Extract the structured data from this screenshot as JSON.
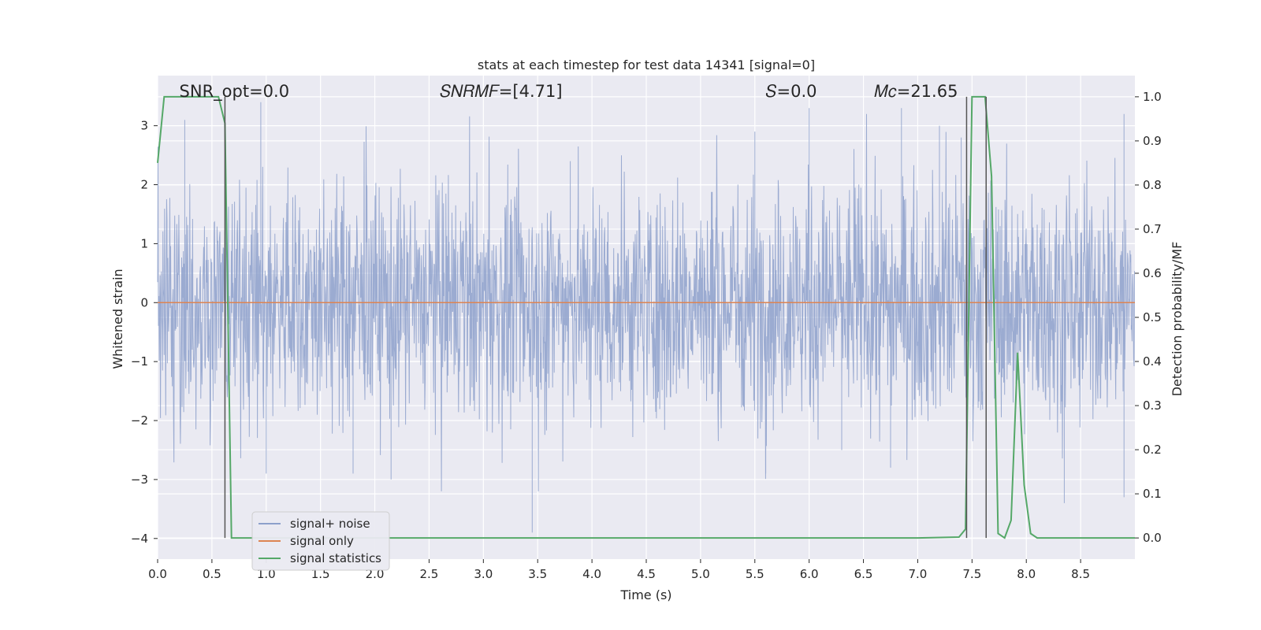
{
  "chart_data": {
    "type": "line",
    "title": "stats at each timestep for test data 14341 [signal=0]",
    "xlabel": "Time (s)",
    "ylabel": "Whitened strain",
    "y2label": "Detection probability/MF",
    "xlim": [
      0.0,
      9.0
    ],
    "ylim": [
      -4.35,
      3.85
    ],
    "y2lim": [
      -0.048,
      1.048
    ],
    "x_ticks": [
      "0.0",
      "0.5",
      "1.0",
      "1.5",
      "2.0",
      "2.5",
      "3.0",
      "3.5",
      "4.0",
      "4.5",
      "5.0",
      "5.5",
      "6.0",
      "6.5",
      "7.0",
      "7.5",
      "8.0",
      "8.5"
    ],
    "y_ticks": [
      "3",
      "2",
      "1",
      "0",
      "−1",
      "−2",
      "−3",
      "−4"
    ],
    "y2_ticks": [
      "1.0",
      "0.9",
      "0.8",
      "0.7",
      "0.6",
      "0.5",
      "0.4",
      "0.3",
      "0.2",
      "0.1",
      "0.0"
    ],
    "grid": true,
    "legend_position": "lower-left",
    "annotations": [
      {
        "text": "SNR_opt=0.0",
        "x": 0.2
      },
      {
        "text": "𝑆𝑁𝑅𝑀𝐹=[4.71]",
        "x": 2.6
      },
      {
        "text": "𝑆=0.0",
        "x": 5.6
      },
      {
        "text": "𝑀𝑐=21.65",
        "x": 6.6
      }
    ],
    "series": [
      {
        "name": "signal+ noise",
        "color": "#8da0cb",
        "axis": "left",
        "kind": "noise",
        "typical_range": [
          -1.8,
          1.8
        ],
        "extremes": [
          [
            0.25,
            3.1
          ],
          [
            0.95,
            3.4
          ],
          [
            1.0,
            -2.9
          ],
          [
            1.8,
            -2.9
          ],
          [
            2.15,
            -3.0
          ],
          [
            3.45,
            -3.9
          ],
          [
            3.8,
            2.4
          ],
          [
            5.5,
            2.9
          ],
          [
            5.6,
            -2.9
          ],
          [
            6.0,
            3.3
          ],
          [
            6.3,
            -2.5
          ],
          [
            6.75,
            -2.8
          ],
          [
            6.85,
            3.3
          ],
          [
            7.2,
            3.0
          ],
          [
            7.4,
            2.8
          ],
          [
            8.35,
            -3.4
          ],
          [
            8.9,
            3.2
          ],
          [
            8.9,
            -3.3
          ]
        ]
      },
      {
        "name": "signal only",
        "color": "#dd8452",
        "axis": "left",
        "x": [
          0.0,
          9.0
        ],
        "y": [
          0.0,
          0.0
        ]
      },
      {
        "name": "signal statistics",
        "color": "#55a868",
        "axis": "right",
        "x": [
          0.0,
          0.06,
          0.1,
          0.5,
          0.56,
          0.62,
          0.68,
          0.7,
          1.0,
          2.0,
          3.0,
          4.0,
          5.0,
          6.0,
          7.0,
          7.38,
          7.44,
          7.5,
          7.56,
          7.62,
          7.68,
          7.74,
          7.8,
          7.86,
          7.92,
          7.98,
          8.04,
          8.1,
          8.5,
          9.0
        ],
        "y": [
          0.85,
          1.0,
          1.0,
          1.0,
          1.0,
          0.94,
          0.0,
          0.0,
          0.0,
          0.0,
          0.0,
          0.0,
          0.0,
          0.0,
          0.0,
          0.002,
          0.02,
          1.0,
          1.0,
          1.0,
          0.82,
          0.01,
          0.0,
          0.04,
          0.42,
          0.12,
          0.01,
          0.0,
          0.0,
          0.0
        ]
      }
    ],
    "vlines": [
      0.62,
      7.45,
      7.63
    ],
    "vline_color": "#555555"
  }
}
